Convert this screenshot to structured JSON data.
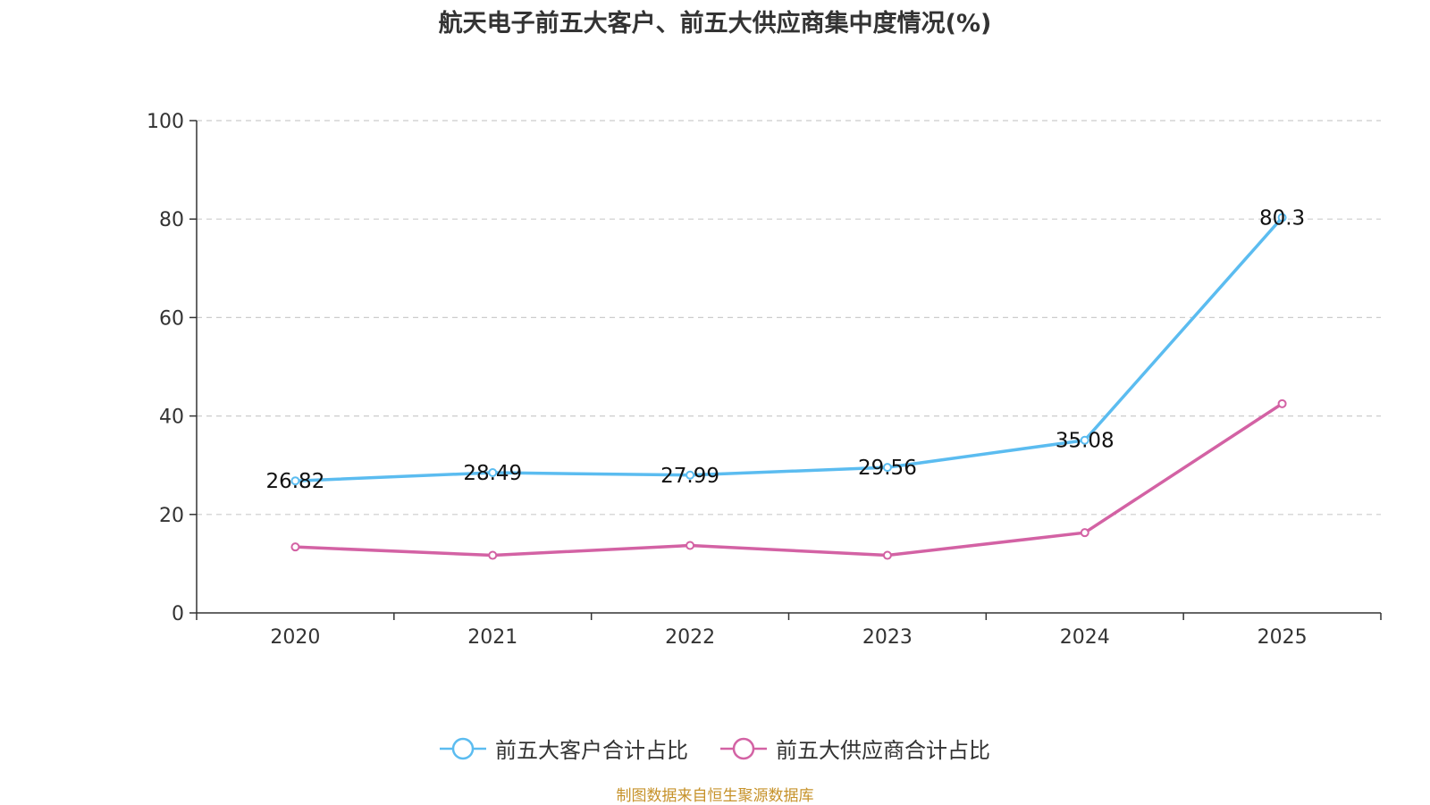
{
  "chart_data": {
    "type": "line",
    "title": "航天电子前五大客户、前五大供应商集中度情况(%)",
    "categories": [
      "2020",
      "2021",
      "2022",
      "2023",
      "2024",
      "2025"
    ],
    "ylim": [
      0,
      100
    ],
    "yticks": [
      0,
      20,
      40,
      60,
      80,
      100
    ],
    "grid": true,
    "legend_position": "bottom",
    "series": [
      {
        "name": "前五大客户合计占比",
        "color": "#5bbcf0",
        "values": [
          26.82,
          28.49,
          27.99,
          29.56,
          35.08,
          80.3
        ],
        "labels": [
          "26.82",
          "28.49",
          "27.99",
          "29.56",
          "35.08",
          "80.3"
        ],
        "show_labels": true
      },
      {
        "name": "前五大供应商合计占比",
        "color": "#d362a4",
        "values": [
          13.4,
          11.7,
          13.7,
          11.7,
          16.3,
          42.5
        ],
        "show_labels": false
      }
    ]
  },
  "source": "制图数据来自恒生聚源数据库"
}
